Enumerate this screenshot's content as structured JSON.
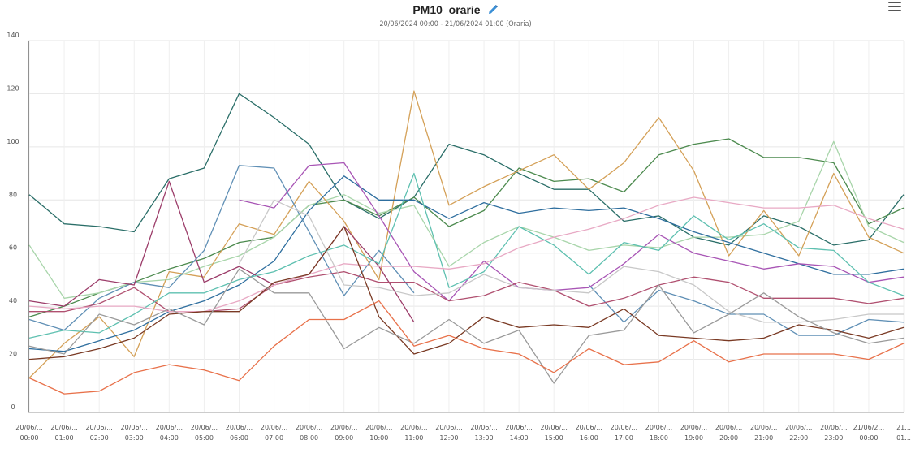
{
  "header": {
    "title": "PM10_orarie",
    "subtitle": "20/06/2024 00:00 - 21/06/2024 01:00 (Oraria)"
  },
  "icons": {
    "edit": "pencil-icon",
    "menu": "hamburger-menu-icon"
  },
  "chart_data": {
    "type": "line",
    "title": "PM10_orarie",
    "subtitle": "20/06/2024 00:00 - 21/06/2024 01:00 (Oraria)",
    "ylim": [
      0,
      140
    ],
    "yticks": [
      0,
      20,
      40,
      60,
      80,
      100,
      120,
      140
    ],
    "grid": true,
    "categories": [
      [
        "20/06/...",
        "00:00"
      ],
      [
        "20/06/...",
        "01:00"
      ],
      [
        "20/06/...",
        "02:00"
      ],
      [
        "20/06/...",
        "03:00"
      ],
      [
        "20/06/...",
        "04:00"
      ],
      [
        "20/06/...",
        "05:00"
      ],
      [
        "20/06/...",
        "06:00"
      ],
      [
        "20/06/...",
        "07:00"
      ],
      [
        "20/06/...",
        "08:00"
      ],
      [
        "20/06/...",
        "09:00"
      ],
      [
        "20/06/...",
        "10:00"
      ],
      [
        "20/06/...",
        "11:00"
      ],
      [
        "20/06/...",
        "12:00"
      ],
      [
        "20/06/...",
        "13:00"
      ],
      [
        "20/06/...",
        "14:00"
      ],
      [
        "20/06/...",
        "15:00"
      ],
      [
        "20/06/...",
        "16:00"
      ],
      [
        "20/06/...",
        "17:00"
      ],
      [
        "20/06/...",
        "18:00"
      ],
      [
        "20/06/...",
        "19:00"
      ],
      [
        "20/06/...",
        "20:00"
      ],
      [
        "20/06/...",
        "21:00"
      ],
      [
        "20/06/...",
        "22:00"
      ],
      [
        "20/06/...",
        "23:00"
      ],
      [
        "21/06/2...",
        "00:00"
      ],
      [
        "21...",
        "01..."
      ]
    ],
    "series": [
      {
        "color": "#2a6e68",
        "values": [
          82,
          71,
          70,
          68,
          88,
          92,
          120,
          111,
          101,
          80,
          73,
          81,
          101,
          97,
          90,
          84,
          84,
          72,
          74,
          66,
          63,
          74,
          70,
          63,
          65,
          82
        ]
      },
      {
        "color": "#4c8a4e",
        "values": [
          36,
          40,
          45,
          49,
          54,
          58,
          64,
          66,
          78,
          80,
          74,
          81,
          70,
          76,
          92,
          87,
          88,
          83,
          97,
          101,
          103,
          96,
          96,
          94,
          71,
          77
        ]
      },
      {
        "color": "#a8d5aa",
        "values": [
          63,
          43,
          45,
          49,
          50,
          55,
          59,
          66,
          78,
          82,
          75,
          78,
          55,
          64,
          70,
          66,
          61,
          63,
          62,
          66,
          66,
          67,
          72,
          102,
          70,
          64
        ]
      },
      {
        "color": "#d4a057",
        "values": [
          13,
          26,
          36,
          21,
          53,
          51,
          71,
          67,
          87,
          72,
          50,
          121,
          78,
          85,
          91,
          97,
          84,
          94,
          111,
          91,
          59,
          76,
          59,
          90,
          66,
          60
        ]
      },
      {
        "color": "#2e6e9e",
        "values": [
          24,
          23,
          27,
          31,
          38,
          42,
          48,
          57,
          76,
          89,
          80,
          80,
          73,
          79,
          75,
          77,
          76,
          77,
          73,
          68,
          64,
          60,
          56,
          52,
          52,
          54
        ]
      },
      {
        "color": "#5f8fb5",
        "values": [
          35,
          31,
          43,
          49,
          47,
          61,
          93,
          92,
          68,
          44,
          61,
          45,
          null,
          null,
          null,
          null,
          48,
          34,
          46,
          42,
          37,
          37,
          29,
          29,
          35,
          34
        ]
      },
      {
        "color": "#9c3d6a",
        "values": [
          42,
          40,
          50,
          48,
          87,
          49,
          55,
          48,
          52,
          70,
          55,
          34,
          null,
          null,
          null,
          null,
          null,
          null,
          null,
          null,
          null,
          null,
          null,
          null,
          null,
          null
        ]
      },
      {
        "color": "#a855b5",
        "values": [
          null,
          null,
          null,
          null,
          null,
          null,
          80,
          77,
          93,
          94,
          74,
          53,
          42,
          57,
          47,
          46,
          47,
          56,
          67,
          60,
          57,
          54,
          56,
          55,
          49,
          51
        ]
      },
      {
        "color": "#b05070",
        "values": [
          38,
          38,
          41,
          47,
          38,
          38,
          39,
          48,
          51,
          53,
          49,
          49,
          42,
          44,
          49,
          46,
          40,
          43,
          48,
          51,
          49,
          43,
          43,
          43,
          41,
          43
        ]
      },
      {
        "color": "#5ec0b0",
        "values": [
          28,
          31,
          30,
          37,
          45,
          45,
          50,
          53,
          59,
          63,
          56,
          90,
          47,
          53,
          70,
          63,
          52,
          64,
          61,
          74,
          65,
          71,
          62,
          61,
          49,
          44
        ]
      },
      {
        "color": "#e8a9c4",
        "values": [
          40,
          39,
          40,
          40,
          38,
          38,
          42,
          48,
          52,
          56,
          55,
          55,
          54,
          56,
          62,
          66,
          69,
          73,
          78,
          81,
          79,
          77,
          77,
          78,
          73,
          69
        ]
      },
      {
        "color": "#c8c8c8",
        "values": [
          null,
          null,
          null,
          null,
          null,
          null,
          56,
          80,
          74,
          48,
          47,
          44,
          45,
          52,
          47,
          46,
          45,
          55,
          53,
          48,
          38,
          34,
          34,
          35,
          37,
          37
        ]
      },
      {
        "color": "#7a3a24",
        "values": [
          20,
          21,
          24,
          28,
          37,
          38,
          38,
          49,
          52,
          70,
          36,
          22,
          26,
          36,
          32,
          33,
          32,
          39,
          29,
          28,
          27,
          28,
          33,
          31,
          28,
          32
        ]
      },
      {
        "color": "#9a9a9a",
        "values": [
          25,
          22,
          37,
          33,
          39,
          33,
          54,
          45,
          45,
          24,
          32,
          26,
          35,
          26,
          31,
          11,
          29,
          31,
          48,
          30,
          37,
          45,
          36,
          30,
          26,
          28
        ]
      },
      {
        "color": "#e8714a",
        "values": [
          13,
          7,
          8,
          15,
          18,
          16,
          12,
          25,
          35,
          35,
          42,
          25,
          29,
          24,
          22,
          15,
          24,
          18,
          19,
          27,
          19,
          22,
          22,
          22,
          20,
          26
        ]
      }
    ]
  }
}
